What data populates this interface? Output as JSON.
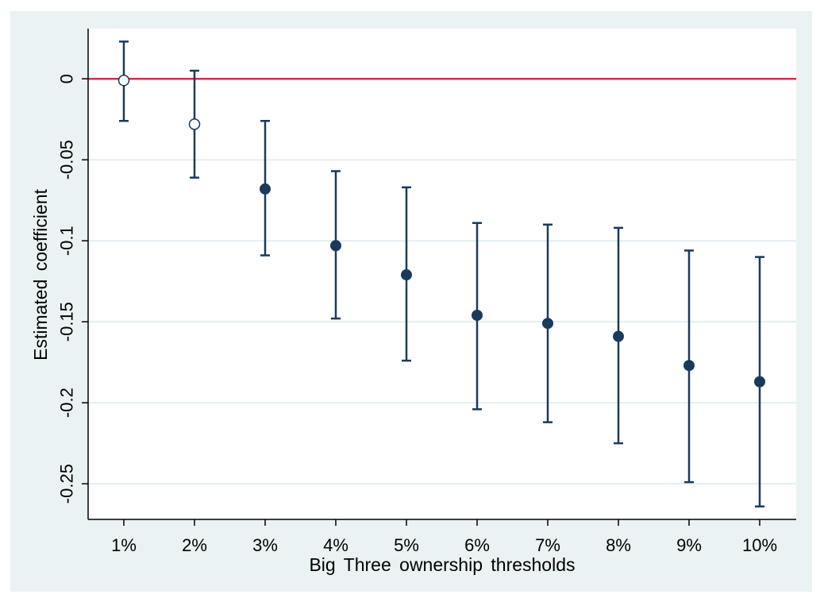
{
  "chart_data": {
    "type": "scatter",
    "title": "",
    "xlabel": "Big Three  ownership  thresholds",
    "ylabel": "Estimated  coefficient",
    "categories": [
      "1%",
      "2%",
      "3%",
      "4%",
      "5%",
      "6%",
      "7%",
      "8%",
      "9%",
      "10%"
    ],
    "estimates": [
      -0.001,
      -0.028,
      -0.068,
      -0.103,
      -0.121,
      -0.146,
      -0.151,
      -0.159,
      -0.177,
      -0.187
    ],
    "ci_lower": [
      -0.026,
      -0.061,
      -0.109,
      -0.148,
      -0.174,
      -0.204,
      -0.212,
      -0.225,
      -0.249,
      -0.264
    ],
    "ci_upper": [
      0.023,
      0.005,
      -0.026,
      -0.057,
      -0.067,
      -0.089,
      -0.09,
      -0.092,
      -0.106,
      -0.11
    ],
    "significant": [
      false,
      false,
      true,
      true,
      true,
      true,
      true,
      true,
      true,
      true
    ],
    "yticks": [
      0,
      -0.05,
      -0.1,
      -0.15,
      -0.2,
      -0.25
    ],
    "ytick_labels": [
      "0",
      "-0.05",
      "-0.1",
      "-0.15",
      "-0.2",
      "-0.25"
    ],
    "ylim": [
      -0.272,
      0.031
    ],
    "reference_line": 0,
    "grid": true,
    "legend": "none",
    "colors": {
      "point": "#1a3a5c",
      "errorbar": "#1a3a5c",
      "reference_line": "#c8324b",
      "gridline": "#e3eef0",
      "plot_background": "#ffffff",
      "outer_background": "#eaf2f3"
    }
  }
}
